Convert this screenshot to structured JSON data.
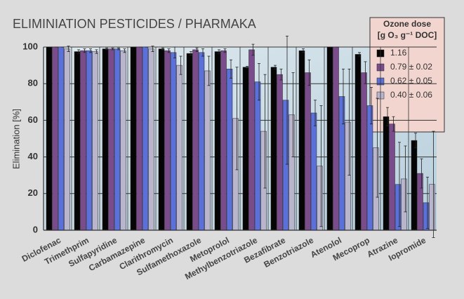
{
  "chart_data": {
    "type": "bar",
    "title": "ELIMINIATION PESTICIDES / PHARMAKA",
    "y_label": "Elimination [%]",
    "legend_title": "Ozone dose",
    "legend_subtitle": "[g O₃ g⁻¹ DOC]",
    "categories": [
      "Diclofenac",
      "Trimethprim",
      "Sulfapyridine",
      "Carbamazepine",
      "Clarithromycin",
      "Sulfamethoxazole",
      "Metoprolol",
      "Methylbenzotriazole",
      "Bezafibrate",
      "Benzotriazole",
      "Atenolol",
      "Mecoprop",
      "Atrazine",
      "Iopromide"
    ],
    "series": [
      {
        "name": "1.16",
        "color": "#050505",
        "values": [
          100,
          97.5,
          99,
          100,
          99,
          96.5,
          97.5,
          89,
          89,
          98,
          100,
          96,
          62,
          49
        ],
        "errors": [
          0,
          1,
          0.5,
          0,
          0.5,
          1,
          1,
          0.5,
          1,
          1,
          0,
          1,
          5,
          4
        ]
      },
      {
        "name": "0.79 ± 0.02",
        "color": "#7a4c8c",
        "values": [
          100,
          98,
          99,
          100,
          98,
          98.5,
          98,
          98.5,
          85,
          86,
          100,
          86,
          58,
          31
        ],
        "errors": [
          0,
          1,
          0.5,
          0,
          1,
          1,
          1,
          3,
          3,
          7,
          0,
          6,
          4,
          8
        ]
      },
      {
        "name": "0.62 ± 0.05",
        "color": "#5b70d8",
        "values": [
          100,
          98,
          99,
          100,
          97,
          97,
          88,
          81,
          71,
          64,
          73,
          68,
          25,
          15
        ],
        "errors": [
          0,
          1,
          0.5,
          0,
          3,
          2,
          5,
          10,
          35,
          7,
          15,
          10,
          23,
          14
        ]
      },
      {
        "name": "0.40 ± 0.06",
        "color": "#b8b5cc",
        "values": [
          99,
          97.5,
          98,
          99,
          90,
          87,
          61,
          54,
          63,
          35,
          59,
          45,
          28,
          25
        ],
        "errors": [
          1.5,
          1,
          1,
          1.5,
          5,
          8,
          28,
          31,
          23,
          33,
          29,
          27,
          18,
          29
        ]
      }
    ],
    "ylim": [
      0,
      100
    ],
    "yticks": [
      0,
      20,
      40,
      60,
      80,
      100
    ],
    "grid": true
  }
}
